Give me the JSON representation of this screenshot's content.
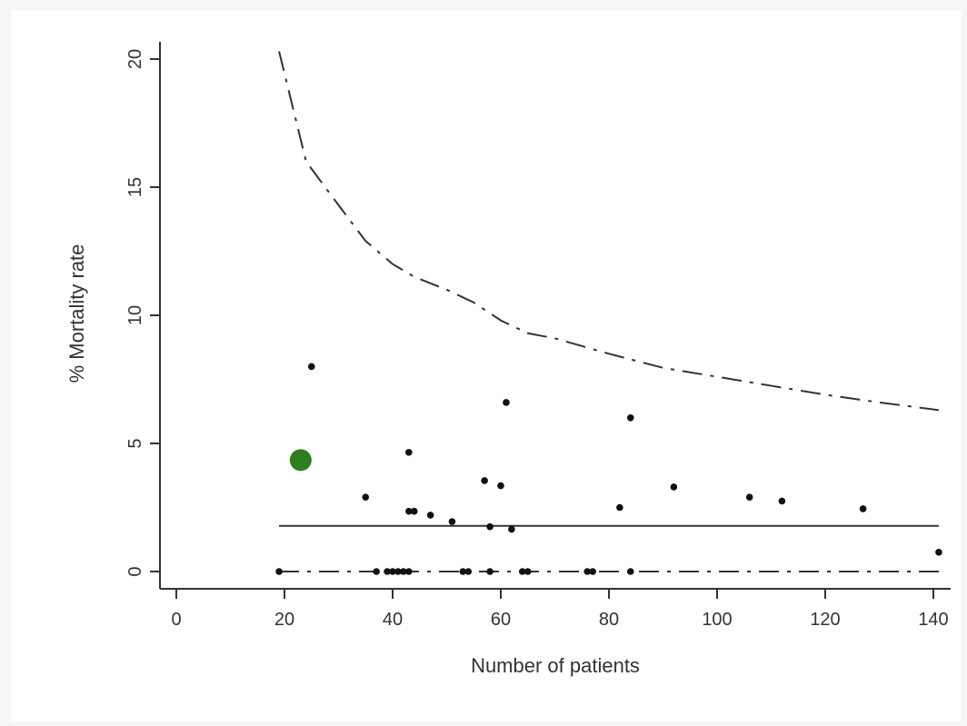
{
  "chart_data": {
    "type": "scatter",
    "title": "",
    "xlabel": "Number of patients",
    "ylabel": "% Mortality rate",
    "xlim": [
      0,
      143
    ],
    "ylim": [
      0,
      20
    ],
    "x_ticks": [
      "0",
      "20",
      "40",
      "60",
      "80",
      "100",
      "120",
      "140"
    ],
    "y_ticks": [
      "0",
      "5",
      "10",
      "15",
      "20"
    ],
    "grid": false,
    "points": [
      {
        "x": 19,
        "y": 0
      },
      {
        "x": 25,
        "y": 8.0
      },
      {
        "x": 35,
        "y": 2.9
      },
      {
        "x": 37,
        "y": 0
      },
      {
        "x": 39,
        "y": 0
      },
      {
        "x": 40,
        "y": 0
      },
      {
        "x": 41,
        "y": 0
      },
      {
        "x": 42,
        "y": 0
      },
      {
        "x": 43,
        "y": 0
      },
      {
        "x": 43,
        "y": 4.65
      },
      {
        "x": 43,
        "y": 2.35
      },
      {
        "x": 44,
        "y": 2.35
      },
      {
        "x": 47,
        "y": 2.2
      },
      {
        "x": 51,
        "y": 1.95
      },
      {
        "x": 53,
        "y": 0
      },
      {
        "x": 54,
        "y": 0
      },
      {
        "x": 57,
        "y": 3.55
      },
      {
        "x": 58,
        "y": 1.75
      },
      {
        "x": 58,
        "y": 0
      },
      {
        "x": 60,
        "y": 3.35
      },
      {
        "x": 61,
        "y": 6.6
      },
      {
        "x": 62,
        "y": 1.65
      },
      {
        "x": 64,
        "y": 0
      },
      {
        "x": 65,
        "y": 0
      },
      {
        "x": 76,
        "y": 0
      },
      {
        "x": 77,
        "y": 0
      },
      {
        "x": 82,
        "y": 2.5
      },
      {
        "x": 84,
        "y": 6.0
      },
      {
        "x": 84,
        "y": 0
      },
      {
        "x": 92,
        "y": 3.3
      },
      {
        "x": 106,
        "y": 2.9
      },
      {
        "x": 112,
        "y": 2.75
      },
      {
        "x": 127,
        "y": 2.45
      },
      {
        "x": 141,
        "y": 0.75
      }
    ],
    "highlight_point": {
      "x": 23,
      "y": 4.35,
      "color": "#2e7d1f"
    },
    "mean_line": {
      "y": 1.78,
      "x_range": [
        19,
        141
      ],
      "style": "solid"
    },
    "lower_limit": {
      "y": 0,
      "x_range": [
        19,
        141
      ],
      "style": "dash-dot"
    },
    "upper_limit": {
      "style": "dash-dot",
      "points": [
        [
          19,
          20.3
        ],
        [
          24,
          16.0
        ],
        [
          30,
          14.3
        ],
        [
          35,
          12.9
        ],
        [
          40,
          12.0
        ],
        [
          44,
          11.5
        ],
        [
          50,
          11.0
        ],
        [
          55,
          10.5
        ],
        [
          60,
          9.8
        ],
        [
          65,
          9.3
        ],
        [
          70,
          9.1
        ],
        [
          80,
          8.5
        ],
        [
          90,
          7.95
        ],
        [
          100,
          7.6
        ],
        [
          110,
          7.25
        ],
        [
          120,
          6.9
        ],
        [
          130,
          6.6
        ],
        [
          141,
          6.3
        ]
      ]
    },
    "colors": {
      "points": "#111111",
      "lines": "#333333",
      "axis": "#333333"
    }
  }
}
